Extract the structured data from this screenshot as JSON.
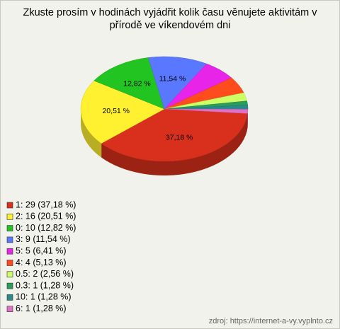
{
  "chart_data": {
    "type": "pie",
    "title": "Zkuste prosím v hodinách vyjádřit kolik času věnujete aktivitám v přírodě ve víkendovém dni",
    "categories": [
      "1: 29 (37,18 %)",
      "2: 16 (20,51 %)",
      "0: 10 (12,82 %)",
      "3: 9 (11,54 %)",
      "5: 5 (6,41 %)",
      "4: 4 (5,13 %)",
      "0.5: 2 (2,56 %)",
      "0.3: 1 (1,28 %)",
      "10: 1 (1,28 %)",
      "6: 1 (1,28 %)"
    ],
    "values": [
      37.18,
      20.51,
      12.82,
      11.54,
      6.41,
      5.13,
      2.56,
      1.28,
      1.28,
      1.28
    ],
    "value_labels": [
      "37,18 %",
      "20,51 %",
      "12,82 %",
      "11,54 %",
      null,
      null,
      null,
      null,
      null,
      null
    ],
    "colors": [
      "#d8301c",
      "#fff030",
      "#22c422",
      "#5a78ff",
      "#e824e8",
      "#ff4c1c",
      "#ccff66",
      "#2a9c5c",
      "#2a8a8a",
      "#e070c8"
    ],
    "legend": "bottom-left",
    "source": "zdroj: https://internet-a-vy.vyplnto.cz"
  }
}
